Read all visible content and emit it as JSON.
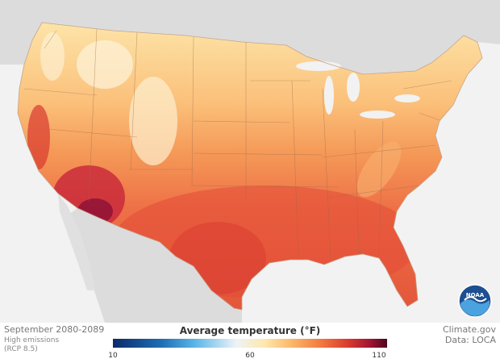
{
  "legend": {
    "title": "Average temperature (°F)",
    "min_label": "10",
    "mid_label": "60",
    "max_label": "110",
    "scale": {
      "min": 10,
      "mid": 60,
      "max": 110
    }
  },
  "period": "September 2080-2089",
  "scenario_line1": "High emissions",
  "scenario_line2": "(RCP 8.5)",
  "credit": "Climate.gov",
  "data_source": "Data: LOCA",
  "logo_text": "NOAA",
  "colors": {
    "background": "#f2f2f2",
    "neighbor_land": "#dcdcdc",
    "cool": "#fde9b0",
    "warm": "#f59a58",
    "hot": "#e85c3a",
    "hottest": "#b3183a"
  }
}
